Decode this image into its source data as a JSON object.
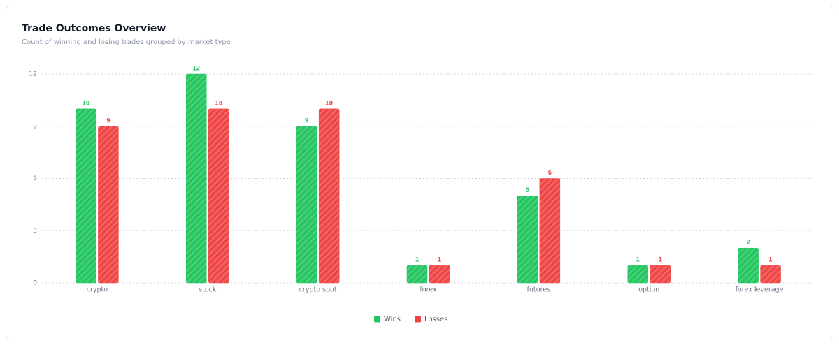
{
  "chart_data": {
    "type": "bar",
    "title": "Trade Outcomes Overview",
    "subtitle": "Count of winning and losing trades grouped by market type",
    "categories": [
      "crypto",
      "stock",
      "crypto spot",
      "forex",
      "futures",
      "option",
      "forex leverage"
    ],
    "series": [
      {
        "name": "Wins",
        "color": "#22c55e",
        "values": [
          10,
          12,
          9,
          1,
          5,
          1,
          2
        ]
      },
      {
        "name": "Losses",
        "color": "#ef4444",
        "values": [
          9,
          10,
          10,
          1,
          6,
          1,
          1
        ]
      }
    ],
    "ylim": [
      0,
      12
    ],
    "yticks": [
      0,
      3,
      6,
      9,
      12
    ],
    "grid": true,
    "legend": "bottom"
  }
}
